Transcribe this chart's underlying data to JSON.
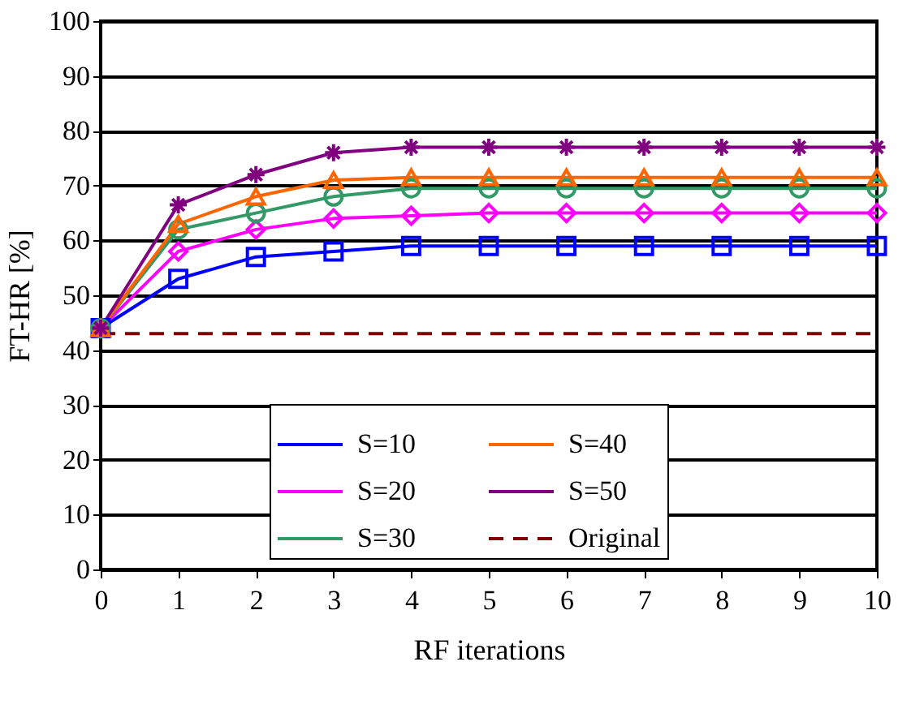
{
  "chart_data": {
    "type": "line",
    "xlabel": "RF iterations",
    "ylabel": "FT-HR [%]",
    "x": [
      0,
      1,
      2,
      3,
      4,
      5,
      6,
      7,
      8,
      9,
      10
    ],
    "series": [
      {
        "name": "S=10",
        "color": "#0000ff",
        "marker": "square",
        "line_style": "solid",
        "values": [
          44,
          53,
          57,
          58,
          59,
          59,
          59,
          59,
          59,
          59,
          59
        ]
      },
      {
        "name": "S=20",
        "color": "#ff00ff",
        "marker": "diamond",
        "line_style": "solid",
        "values": [
          44,
          58,
          62,
          64,
          64.5,
          65,
          65,
          65,
          65,
          65,
          65
        ]
      },
      {
        "name": "S=30",
        "color": "#339966",
        "marker": "circle",
        "line_style": "solid",
        "values": [
          44,
          62,
          65,
          68,
          69.5,
          69.5,
          69.5,
          69.5,
          69.5,
          69.5,
          69.5
        ]
      },
      {
        "name": "S=40",
        "color": "#ff6600",
        "marker": "triangle",
        "line_style": "solid",
        "values": [
          44,
          63,
          68,
          71,
          71.5,
          71.5,
          71.5,
          71.5,
          71.5,
          71.5,
          71.5
        ]
      },
      {
        "name": "S=50",
        "color": "#800080",
        "marker": "cross",
        "line_style": "solid",
        "values": [
          44,
          66.5,
          72,
          76,
          77,
          77,
          77,
          77,
          77,
          77,
          77
        ]
      },
      {
        "name": "Original",
        "color": "#800000",
        "marker": "none",
        "line_style": "dashed",
        "values": [
          43,
          43,
          43,
          43,
          43,
          43,
          43,
          43,
          43,
          43,
          43
        ]
      }
    ],
    "xlim": [
      0,
      10
    ],
    "xticks": [
      0,
      1,
      2,
      3,
      4,
      5,
      6,
      7,
      8,
      9,
      10
    ],
    "ylim": [
      0,
      100
    ],
    "yticks": [
      0,
      10,
      20,
      30,
      40,
      50,
      60,
      70,
      80,
      90,
      100
    ],
    "grid": "y",
    "legend": "bottom right"
  }
}
